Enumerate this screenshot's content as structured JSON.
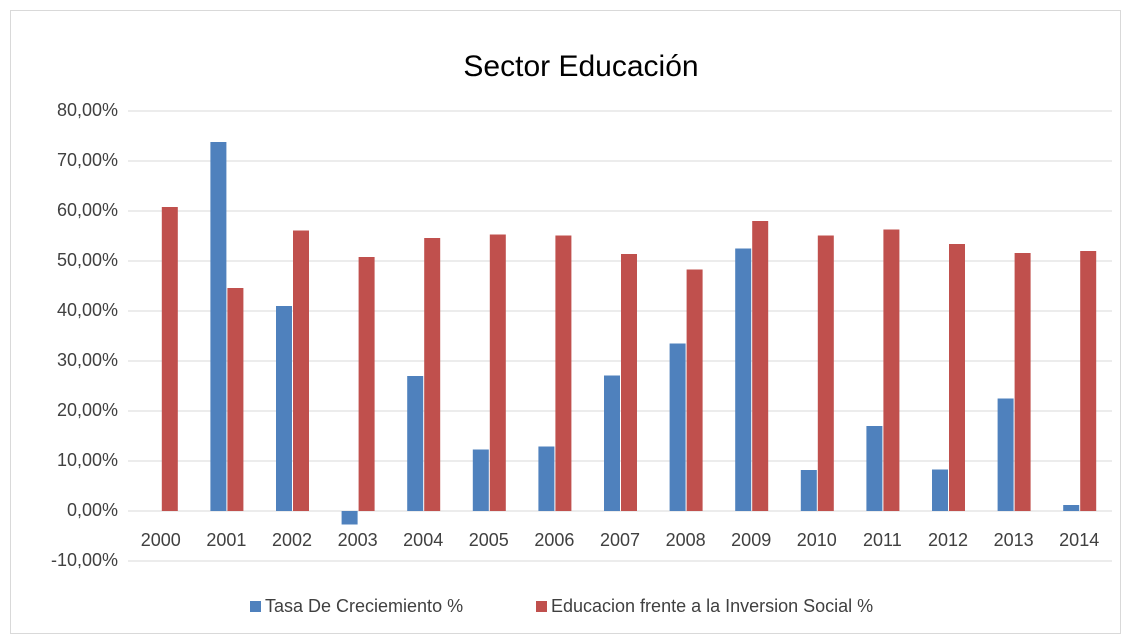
{
  "chart_data": {
    "type": "bar",
    "title": "Sector Educación",
    "categories": [
      "2000",
      "2001",
      "2002",
      "2003",
      "2004",
      "2005",
      "2006",
      "2007",
      "2008",
      "2009",
      "2010",
      "2011",
      "2012",
      "2013",
      "2014"
    ],
    "series": [
      {
        "name": "Tasa De Creciemiento %",
        "color": "#4f81bd",
        "values": [
          null,
          73.8,
          41,
          -2.7,
          27,
          12.3,
          12.9,
          27.1,
          33.5,
          52.5,
          8.2,
          17,
          8.3,
          22.5,
          1.2
        ]
      },
      {
        "name": "Educacion frente a la Inversion Social %",
        "color": "#c0504d",
        "values": [
          60.8,
          44.6,
          56.1,
          50.8,
          54.6,
          55.3,
          55.1,
          51.4,
          48.3,
          58,
          55.1,
          56.3,
          53.4,
          51.6,
          52
        ]
      }
    ],
    "ylim": [
      -10,
      80
    ],
    "yticks": [
      {
        "value": -10,
        "label": "-10,00%"
      },
      {
        "value": 0,
        "label": "0,00%"
      },
      {
        "value": 10,
        "label": "10,00%"
      },
      {
        "value": 20,
        "label": "20,00%"
      },
      {
        "value": 30,
        "label": "30,00%"
      },
      {
        "value": 40,
        "label": "40,00%"
      },
      {
        "value": 50,
        "label": "50,00%"
      },
      {
        "value": 60,
        "label": "60,00%"
      },
      {
        "value": 70,
        "label": "70,00%"
      },
      {
        "value": 80,
        "label": "80,00%"
      }
    ],
    "grid": true,
    "legend": "bottom"
  }
}
